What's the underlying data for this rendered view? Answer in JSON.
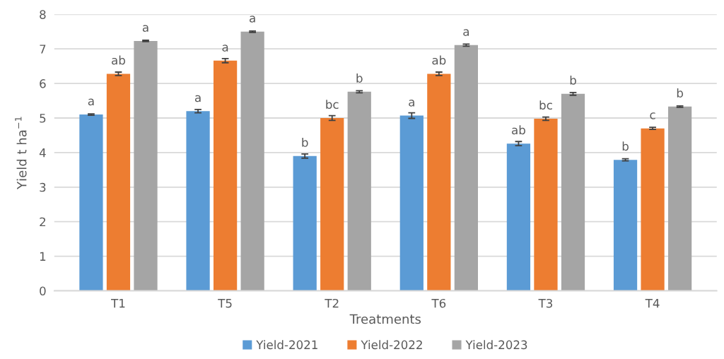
{
  "chart_data": {
    "type": "bar",
    "xlabel": "Treatments",
    "ylabel": "Yield t ha$^{−1}$",
    "categories": [
      "T1",
      "T5",
      "T2",
      "T6",
      "T3",
      "T4"
    ],
    "series": [
      {
        "name": "Yield-2021",
        "color": "#5b9bd5",
        "values": [
          5.1,
          5.2,
          3.9,
          5.07,
          4.26,
          3.79
        ],
        "errors": [
          0.02,
          0.05,
          0.06,
          0.08,
          0.06,
          0.03
        ],
        "value_labels": [
          "a",
          "a",
          "b",
          "a",
          "ab",
          "b"
        ]
      },
      {
        "name": "Yield-2022",
        "color": "#ed7d31",
        "values": [
          6.28,
          6.66,
          5.0,
          6.28,
          4.98,
          4.7
        ],
        "errors": [
          0.05,
          0.06,
          0.07,
          0.05,
          0.05,
          0.03
        ],
        "value_labels": [
          "ab",
          "a",
          "bc",
          "ab",
          "bc",
          "c"
        ]
      },
      {
        "name": "Yield-2023",
        "color": "#a5a5a5",
        "values": [
          7.23,
          7.5,
          5.76,
          7.11,
          5.7,
          5.33
        ],
        "errors": [
          0.02,
          0.02,
          0.03,
          0.03,
          0.04,
          0.02
        ],
        "value_labels": [
          "a",
          "a",
          "b",
          "a",
          "b",
          "b"
        ]
      }
    ],
    "ylim": [
      0,
      8
    ],
    "yticks": [
      0,
      1,
      2,
      3,
      4,
      5,
      6,
      7,
      8
    ],
    "grid": "y",
    "legend": "bottom"
  }
}
